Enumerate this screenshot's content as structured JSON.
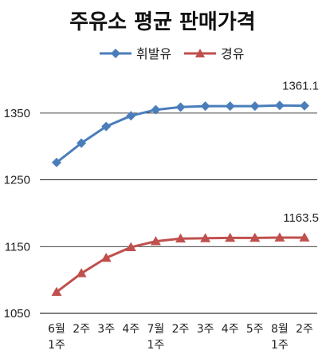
{
  "chart_data": {
    "type": "line",
    "title": "주유소 평균 판매가격",
    "categories": [
      [
        "6월",
        "1주"
      ],
      [
        "2주"
      ],
      [
        "3주"
      ],
      [
        "4주"
      ],
      [
        "7월",
        "1주"
      ],
      [
        "2주"
      ],
      [
        "3주"
      ],
      [
        "4주"
      ],
      [
        "5주"
      ],
      [
        "8월",
        "1주"
      ],
      [
        "2주"
      ]
    ],
    "series": [
      {
        "name": "휘발유",
        "color": "#4a7ebb",
        "marker": "diamond",
        "values": [
          1276,
          1305,
          1330,
          1346,
          1355,
          1359,
          1360.5,
          1360.5,
          1360.5,
          1361.5,
          1361.1
        ]
      },
      {
        "name": "경유",
        "color": "#c0504d",
        "marker": "triangle",
        "values": [
          1082,
          1110,
          1133,
          1149,
          1158,
          1162,
          1162.5,
          1163,
          1163,
          1163.5,
          1163.5
        ]
      }
    ],
    "annotations": [
      {
        "series": 0,
        "index": 10,
        "text": "1361.1"
      },
      {
        "series": 1,
        "index": 10,
        "text": "1163.5"
      }
    ],
    "yticks": [
      1050,
      1150,
      1250,
      1350
    ],
    "ylim": [
      1050,
      1400
    ],
    "grid": "horizontal",
    "legend": "top-center"
  }
}
